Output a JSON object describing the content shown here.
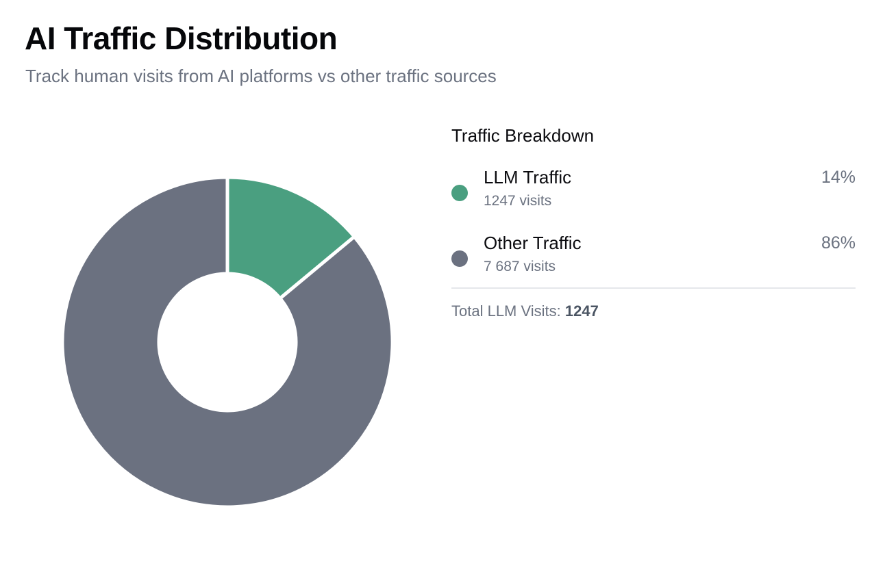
{
  "header": {
    "title": "AI Traffic Distribution",
    "subtitle": "Track human visits from AI platforms vs other traffic sources"
  },
  "legend": {
    "title": "Traffic Breakdown",
    "total_label": "Total LLM Visits:",
    "total_value": "1247"
  },
  "chart_data": {
    "type": "pie",
    "title": "",
    "categories": [
      "LLM Traffic",
      "Other Traffic"
    ],
    "values": [
      1247,
      7687
    ],
    "series": [
      {
        "name": "LLM Traffic",
        "value": 1247,
        "percent_label": "14%",
        "visits_label": "1247 visits",
        "color": "#4a9f80"
      },
      {
        "name": "Other Traffic",
        "value": 7687,
        "percent_label": "86%",
        "visits_label": "7 687 visits",
        "color": "#6b7180"
      }
    ],
    "donut": true,
    "legend_placement": "right"
  }
}
